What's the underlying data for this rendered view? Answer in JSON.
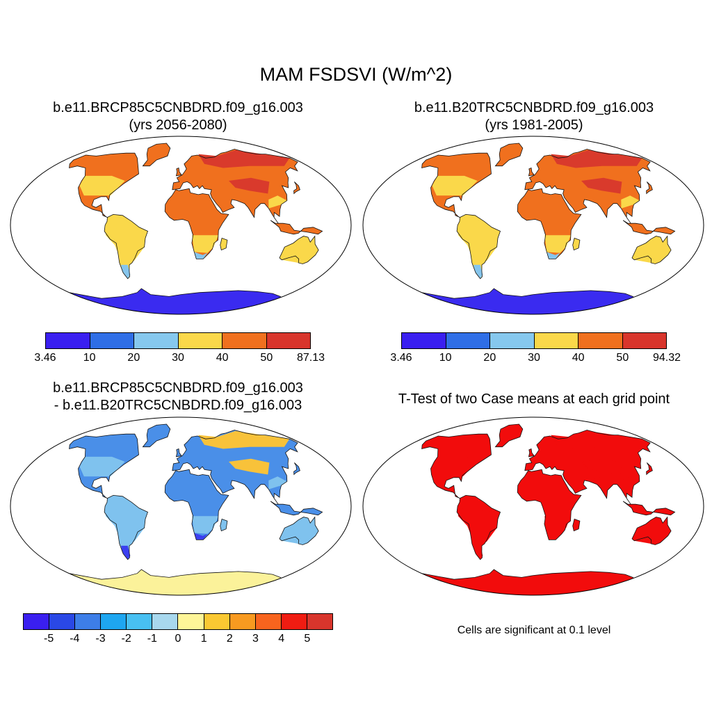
{
  "title": "MAM FSDSVI (W/m^2)",
  "panels": [
    {
      "id": "case1",
      "title_line1": "b.e11.BRCP85C5CNBDRD.f09_g16.003",
      "title_line2": "(yrs 2056-2080)",
      "colors": {
        "land_north": "#f0701e",
        "land_south": "#fad84a",
        "cold": "#86c5ec",
        "antarctica": "#3a2bf0",
        "hot": "#d93a2c"
      },
      "colorbar": {
        "colors": [
          "#3a1ff0",
          "#2f6ee6",
          "#86c8ee",
          "#fad84a",
          "#f0701e",
          "#d8352c"
        ],
        "labels": [
          "3.46",
          "10",
          "20",
          "30",
          "40",
          "50",
          "87.13"
        ]
      }
    },
    {
      "id": "case2",
      "title_line1": "b.e11.B20TRC5CNBDRD.f09_g16.003",
      "title_line2": "(yrs 1981-2005)",
      "colors": {
        "land_north": "#f0701e",
        "land_south": "#fad84a",
        "cold": "#86c5ec",
        "antarctica": "#3a2bf0",
        "hot": "#d93a2c"
      },
      "colorbar": {
        "colors": [
          "#3a1ff0",
          "#2f6ee6",
          "#86c8ee",
          "#fad84a",
          "#f0701e",
          "#d8352c"
        ],
        "labels": [
          "3.46",
          "10",
          "20",
          "30",
          "40",
          "50",
          "94.32"
        ]
      }
    },
    {
      "id": "diff",
      "title_line1": "b.e11.BRCP85C5CNBDRD.f09_g16.003",
      "title_line2": "- b.e11.B20TRC5CNBDRD.f09_g16.003",
      "colors": {
        "land_north": "#4a8fe8",
        "land_south": "#7fc2ee",
        "cold": "#3b3ff0",
        "antarctica": "#fbf29a",
        "hot": "#f8c23a"
      },
      "colorbar": {
        "colors": [
          "#3a1ff0",
          "#2a48e6",
          "#3d7ee8",
          "#1ea6f0",
          "#48c0f2",
          "#a8d8ee",
          "#fdf598",
          "#fac832",
          "#f89a20",
          "#f8641e",
          "#f01c12",
          "#d8352c"
        ],
        "labels": [
          "-5",
          "-4",
          "-3",
          "-2",
          "-1",
          "0",
          "1",
          "2",
          "3",
          "4",
          "5"
        ]
      }
    },
    {
      "id": "ttest",
      "title_line1": "T-Test of two Case means at each grid point",
      "title_line2": "",
      "colors": {
        "land_north": "#f20c0c",
        "land_south": "#f20c0c",
        "cold": "#f20c0c",
        "antarctica": "#f20c0c",
        "hot": "#f20c0c"
      },
      "note": "Cells are significant at 0.1 level"
    }
  ]
}
